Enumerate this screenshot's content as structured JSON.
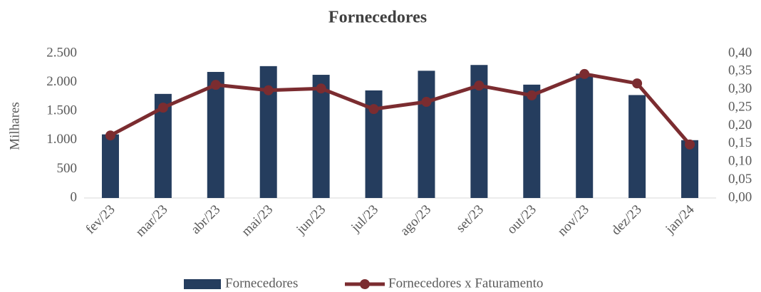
{
  "chart_data": {
    "type": "bar_line",
    "title": "Fornecedores",
    "y_label": "Milhares",
    "categories": [
      "fev/23",
      "mar/23",
      "abr/23",
      "mai/23",
      "jun/23",
      "jul/23",
      "ago/23",
      "set/23",
      "out/23",
      "nov/23",
      "dez/23",
      "jan/24"
    ],
    "series": [
      {
        "name": "Fornecedores",
        "type": "bar",
        "color": "#253d5e",
        "values": [
          1100,
          1800,
          2180,
          2280,
          2130,
          1860,
          2200,
          2300,
          1960,
          2150,
          1780,
          1000
        ]
      },
      {
        "name": "Fornecedores x Faturamento",
        "type": "line",
        "color": "#7b2c30",
        "axis": "y2",
        "values": [
          0.173,
          0.25,
          0.313,
          0.298,
          0.303,
          0.246,
          0.266,
          0.311,
          0.284,
          0.343,
          0.317,
          0.148
        ]
      }
    ],
    "ylim": [
      0,
      2500
    ],
    "yticks": [
      0,
      500,
      {
        "value": 1000,
        "label": "1.000"
      },
      {
        "value": 1500,
        "label": "1.500"
      },
      {
        "value": 2000,
        "label": "2.000"
      },
      {
        "value": 2500,
        "label": "2.500"
      }
    ],
    "y2lim": [
      0,
      0.4
    ],
    "y2ticks": [
      {
        "value": 0,
        "label": "0,00"
      },
      {
        "value": 0.05,
        "label": "0,05"
      },
      {
        "value": 0.1,
        "label": "0,10"
      },
      {
        "value": 0.15,
        "label": "0,15"
      },
      {
        "value": 0.2,
        "label": "0,20"
      },
      {
        "value": 0.25,
        "label": "0,25"
      },
      {
        "value": 0.3,
        "label": "0,30"
      },
      {
        "value": 0.35,
        "label": "0,35"
      },
      {
        "value": 0.4,
        "label": "0,40"
      }
    ],
    "legend": "bottom"
  }
}
